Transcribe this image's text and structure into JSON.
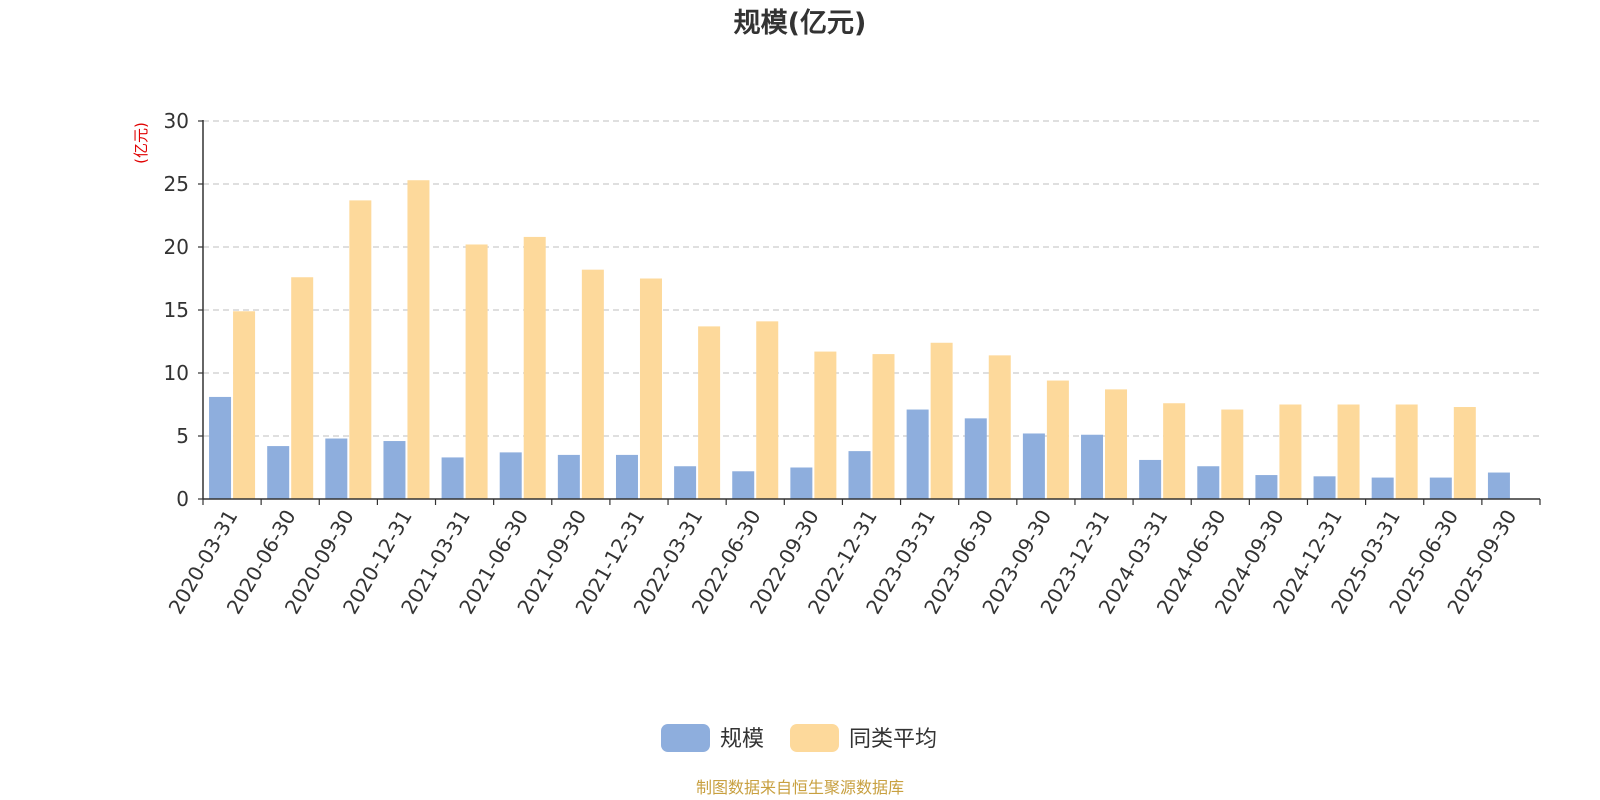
{
  "chart_data": {
    "type": "bar",
    "title": "规模(亿元)",
    "ylabel": "(亿元)",
    "xlabel": "",
    "ylim": [
      0,
      30
    ],
    "yticks": [
      0,
      5,
      10,
      15,
      20,
      25,
      30
    ],
    "grid": true,
    "legend_position": "bottom",
    "categories": [
      "2020-03-31",
      "2020-06-30",
      "2020-09-30",
      "2020-12-31",
      "2021-03-31",
      "2021-06-30",
      "2021-09-30",
      "2021-12-31",
      "2022-03-31",
      "2022-06-30",
      "2022-09-30",
      "2022-12-31",
      "2023-03-31",
      "2023-06-30",
      "2023-09-30",
      "2023-12-31",
      "2024-03-31",
      "2024-06-30",
      "2024-09-30",
      "2024-12-31",
      "2025-03-31",
      "2025-06-30",
      "2025-09-30"
    ],
    "series": [
      {
        "name": "规模",
        "color": "#8eaedd",
        "values": [
          8.1,
          4.2,
          4.8,
          4.6,
          3.3,
          3.7,
          3.5,
          3.5,
          2.6,
          2.2,
          2.5,
          3.8,
          7.1,
          6.4,
          5.2,
          5.1,
          3.1,
          2.6,
          1.9,
          1.8,
          1.7,
          1.7,
          2.1
        ]
      },
      {
        "name": "同类平均",
        "color": "#fdd99b",
        "values": [
          14.9,
          17.6,
          23.7,
          25.3,
          20.2,
          20.8,
          18.2,
          17.5,
          13.7,
          14.1,
          11.7,
          11.5,
          12.4,
          11.4,
          9.4,
          8.7,
          7.6,
          7.1,
          7.5,
          7.5,
          7.5,
          7.3,
          null
        ]
      }
    ]
  },
  "colors": {
    "axis": "#333333",
    "grid": "#cccccc",
    "unit": "#e00000",
    "source": "#c8a040"
  },
  "source_text": "制图数据来自恒生聚源数据库"
}
